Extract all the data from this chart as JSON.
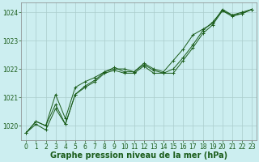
{
  "title": "Graphe pression niveau de la mer (hPa)",
  "bg_color": "#cceef0",
  "grid_color": "#aacccc",
  "line_color": "#1a5c1a",
  "xlim": [
    -0.5,
    23.5
  ],
  "ylim": [
    1019.5,
    1024.35
  ],
  "yticks": [
    1020,
    1021,
    1022,
    1023,
    1024
  ],
  "xticks": [
    0,
    1,
    2,
    3,
    4,
    5,
    6,
    7,
    8,
    9,
    10,
    11,
    12,
    13,
    14,
    15,
    16,
    17,
    18,
    19,
    20,
    21,
    22,
    23
  ],
  "series": [
    [
      1019.75,
      1020.15,
      1020.05,
      1020.75,
      1020.05,
      1021.15,
      1021.35,
      1021.55,
      1021.85,
      1021.95,
      1021.95,
      1021.85,
      1022.15,
      1022.0,
      1021.85,
      1021.85,
      1022.25,
      1022.75,
      1023.3,
      1023.65,
      1024.1,
      1023.95,
      1024.0,
      1024.1
    ],
    [
      1019.75,
      1020.15,
      1020.05,
      1021.05,
      1020.25,
      1021.35,
      1021.55,
      1021.7,
      1021.9,
      1022.05,
      1021.95,
      1021.9,
      1022.2,
      1022.0,
      1021.9,
      1022.0,
      1022.4,
      1022.85,
      1023.4,
      1023.7,
      1024.05,
      1023.9,
      1023.95,
      1024.1
    ],
    [
      1019.75,
      1020.15,
      1020.05,
      1020.75,
      1020.05,
      1021.15,
      1021.35,
      1021.55,
      1021.85,
      1021.95,
      1021.85,
      1021.85,
      1022.05,
      1021.85,
      1021.85,
      1021.85,
      1022.3,
      1022.8,
      1023.25,
      1023.55,
      1024.05,
      1023.85,
      1023.95,
      1024.05
    ]
  ],
  "series_diverge": [
    [
      1019.75,
      1020.15,
      1020.0,
      1020.75,
      1020.05,
      1021.1,
      1021.4,
      1021.6,
      1021.9,
      1022.0,
      1022.0,
      1021.9,
      1022.2,
      1022.0,
      1021.9,
      1022.3,
      1022.7,
      1023.2,
      1023.4,
      1023.6,
      1024.1,
      1023.9,
      1024.0,
      1024.1
    ],
    [
      1019.75,
      1020.1,
      1020.0,
      1020.75,
      1020.0,
      1021.15,
      1021.35,
      1021.55,
      1021.85,
      1021.9,
      1021.85,
      1021.85,
      1022.1,
      1021.85,
      1021.85,
      1021.9,
      1022.35,
      1022.8,
      1023.25,
      1023.55,
      1024.05,
      1023.9,
      1023.95,
      1024.1
    ],
    [
      1019.75,
      1020.1,
      1020.05,
      1021.05,
      1020.25,
      1021.35,
      1021.55,
      1021.7,
      1021.9,
      1022.05,
      1021.9,
      1021.85,
      1022.15,
      1021.95,
      1021.85,
      1021.95,
      1022.4,
      1022.85,
      1023.35,
      1023.65,
      1024.05,
      1023.85,
      1023.95,
      1024.1
    ]
  ],
  "tick_color": "#1a5c1a",
  "title_color": "#1a5c1a",
  "tick_fontsize": 5.5,
  "title_fontsize": 7.0
}
